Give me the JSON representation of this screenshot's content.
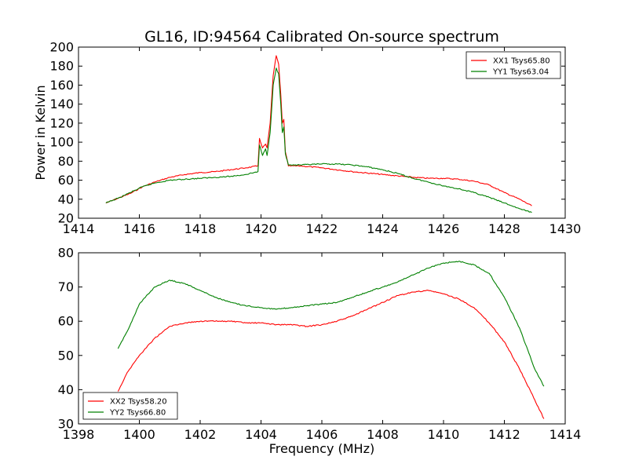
{
  "title": "GL16, ID:94564 Calibrated On-source spectrum",
  "chart_data": [
    {
      "type": "line",
      "xlabel": "",
      "ylabel": "Power in Kelvin",
      "xlim": [
        1414,
        1430
      ],
      "ylim": [
        20,
        200
      ],
      "xticks": [
        1414,
        1416,
        1418,
        1420,
        1422,
        1424,
        1426,
        1428,
        1430
      ],
      "yticks": [
        20,
        40,
        60,
        80,
        100,
        120,
        140,
        160,
        180,
        200
      ],
      "legend_position": "top-right",
      "series": [
        {
          "name": "XX1 Tsys65.80",
          "color": "#ff0000",
          "points": [
            [
              1414.9,
              36
            ],
            [
              1415.3,
              41
            ],
            [
              1415.7,
              46
            ],
            [
              1416.1,
              53
            ],
            [
              1416.5,
              58
            ],
            [
              1417.0,
              63
            ],
            [
              1417.5,
              66
            ],
            [
              1418.0,
              68
            ],
            [
              1418.5,
              69
            ],
            [
              1419.0,
              71
            ],
            [
              1419.5,
              73
            ],
            [
              1419.9,
              75
            ],
            [
              1419.95,
              104
            ],
            [
              1420.05,
              94
            ],
            [
              1420.15,
              98
            ],
            [
              1420.2,
              94
            ],
            [
              1420.3,
              120
            ],
            [
              1420.4,
              170
            ],
            [
              1420.5,
              191
            ],
            [
              1420.58,
              182
            ],
            [
              1420.65,
              150
            ],
            [
              1420.7,
              120
            ],
            [
              1420.75,
              124
            ],
            [
              1420.8,
              90
            ],
            [
              1420.9,
              75
            ],
            [
              1421.3,
              75
            ],
            [
              1422.0,
              73
            ],
            [
              1423.0,
              69
            ],
            [
              1424.0,
              66
            ],
            [
              1425.0,
              63
            ],
            [
              1425.5,
              62
            ],
            [
              1426.0,
              62
            ],
            [
              1426.5,
              61
            ],
            [
              1427.0,
              59
            ],
            [
              1427.5,
              55
            ],
            [
              1428.0,
              47
            ],
            [
              1428.5,
              40
            ],
            [
              1428.9,
              33
            ]
          ]
        },
        {
          "name": "YY1 Tsys63.04",
          "color": "#008000",
          "points": [
            [
              1414.9,
              36
            ],
            [
              1415.3,
              41
            ],
            [
              1415.7,
              47
            ],
            [
              1416.1,
              53
            ],
            [
              1416.5,
              57
            ],
            [
              1417.0,
              60
            ],
            [
              1417.5,
              61
            ],
            [
              1418.0,
              62
            ],
            [
              1418.5,
              63
            ],
            [
              1419.0,
              64
            ],
            [
              1419.5,
              66
            ],
            [
              1419.9,
              69
            ],
            [
              1419.95,
              97
            ],
            [
              1420.05,
              86
            ],
            [
              1420.15,
              93
            ],
            [
              1420.2,
              86
            ],
            [
              1420.3,
              110
            ],
            [
              1420.4,
              160
            ],
            [
              1420.5,
              178
            ],
            [
              1420.58,
              172
            ],
            [
              1420.65,
              140
            ],
            [
              1420.7,
              110
            ],
            [
              1420.75,
              116
            ],
            [
              1420.8,
              88
            ],
            [
              1420.9,
              76
            ],
            [
              1421.3,
              76
            ],
            [
              1422.0,
              77
            ],
            [
              1422.5,
              77
            ],
            [
              1423.0,
              76
            ],
            [
              1423.5,
              74
            ],
            [
              1424.0,
              71
            ],
            [
              1424.5,
              67
            ],
            [
              1425.0,
              62
            ],
            [
              1425.5,
              58
            ],
            [
              1426.0,
              54
            ],
            [
              1426.5,
              51
            ],
            [
              1427.0,
              47
            ],
            [
              1427.5,
              42
            ],
            [
              1428.0,
              36
            ],
            [
              1428.5,
              30
            ],
            [
              1428.9,
              26
            ]
          ]
        }
      ]
    },
    {
      "type": "line",
      "xlabel": "Frequency (MHz)",
      "ylabel": "",
      "xlim": [
        1398,
        1414
      ],
      "ylim": [
        30,
        80
      ],
      "xticks": [
        1398,
        1400,
        1402,
        1404,
        1406,
        1408,
        1410,
        1412,
        1414
      ],
      "yticks": [
        30,
        40,
        50,
        60,
        70,
        80
      ],
      "legend_position": "bottom-left",
      "series": [
        {
          "name": "XX2 Tsys58.20",
          "color": "#ff0000",
          "points": [
            [
              1399.3,
              39.5
            ],
            [
              1399.6,
              45
            ],
            [
              1400.0,
              50
            ],
            [
              1400.5,
              55
            ],
            [
              1401.0,
              58.5
            ],
            [
              1401.5,
              59.5
            ],
            [
              1402.0,
              60
            ],
            [
              1402.5,
              60
            ],
            [
              1403.0,
              60
            ],
            [
              1403.5,
              59.5
            ],
            [
              1404.0,
              59.5
            ],
            [
              1404.5,
              59
            ],
            [
              1405.0,
              59
            ],
            [
              1405.5,
              58.5
            ],
            [
              1406.0,
              59
            ],
            [
              1406.5,
              60
            ],
            [
              1407.0,
              61.5
            ],
            [
              1407.5,
              63.5
            ],
            [
              1408.0,
              65.5
            ],
            [
              1408.5,
              67.5
            ],
            [
              1409.0,
              68.5
            ],
            [
              1409.5,
              69
            ],
            [
              1410.0,
              68
            ],
            [
              1410.5,
              66.5
            ],
            [
              1411.0,
              64
            ],
            [
              1411.5,
              59.5
            ],
            [
              1412.0,
              54
            ],
            [
              1412.5,
              46
            ],
            [
              1413.0,
              37
            ],
            [
              1413.3,
              31.5
            ]
          ]
        },
        {
          "name": "YY2 Tsys66.80",
          "color": "#008000",
          "points": [
            [
              1399.3,
              52
            ],
            [
              1399.6,
              57
            ],
            [
              1400.0,
              65
            ],
            [
              1400.5,
              70
            ],
            [
              1401.0,
              72
            ],
            [
              1401.5,
              71
            ],
            [
              1402.0,
              69
            ],
            [
              1402.5,
              67
            ],
            [
              1403.0,
              65.5
            ],
            [
              1403.5,
              64.5
            ],
            [
              1404.0,
              64
            ],
            [
              1404.5,
              63.5
            ],
            [
              1405.0,
              64
            ],
            [
              1405.5,
              64.5
            ],
            [
              1406.0,
              65
            ],
            [
              1406.5,
              65.5
            ],
            [
              1407.0,
              67
            ],
            [
              1407.5,
              68.5
            ],
            [
              1408.0,
              70
            ],
            [
              1408.5,
              71.5
            ],
            [
              1409.0,
              73.5
            ],
            [
              1409.5,
              75.5
            ],
            [
              1410.0,
              77
            ],
            [
              1410.5,
              77.5
            ],
            [
              1411.0,
              76.5
            ],
            [
              1411.5,
              74
            ],
            [
              1412.0,
              67
            ],
            [
              1412.5,
              58
            ],
            [
              1413.0,
              46
            ],
            [
              1413.3,
              41
            ]
          ]
        }
      ]
    }
  ]
}
